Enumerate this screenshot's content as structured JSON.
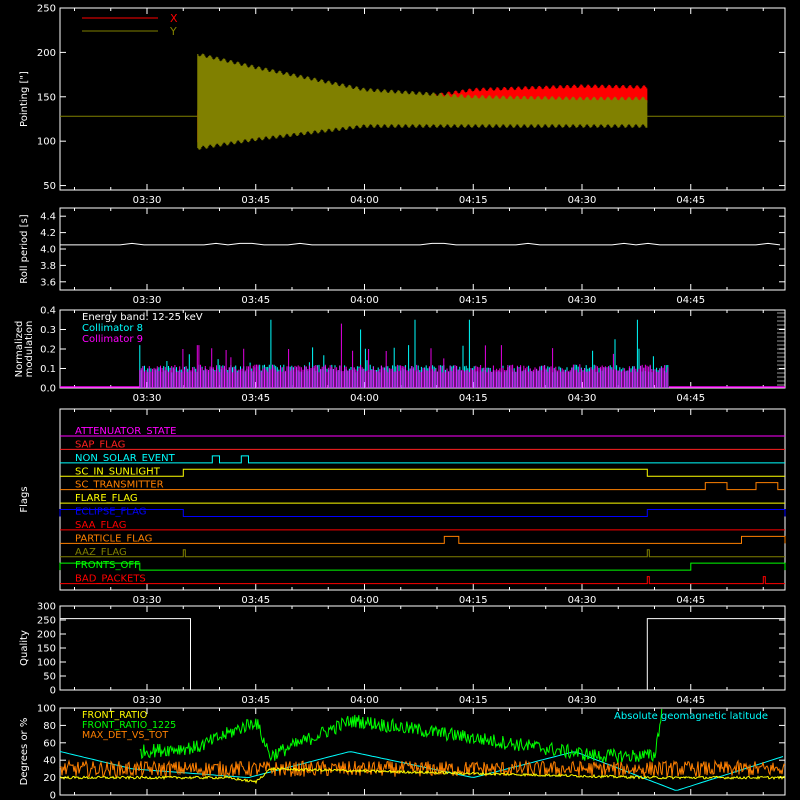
{
  "chart_data": [
    {
      "type": "line",
      "ylabel": "Pointing [\"]",
      "ylim": [
        45,
        250
      ],
      "yticks": [
        50,
        100,
        150,
        200,
        250
      ],
      "x_tick_labels": [
        "03:30",
        "03:45",
        "04:00",
        "04:15",
        "04:30",
        "04:45"
      ],
      "xlim_minutes_note": "x axis spans roughly 03:18 to 04:58",
      "series": [
        {
          "name": "X",
          "color": "#ff0000",
          "envelope": {
            "x": [
              "03:37",
              "03:45",
              "04:00",
              "04:15",
              "04:30",
              "04:39"
            ],
            "high": [
              135,
              135,
              142,
              160,
              164,
              163
            ],
            "low": [
              95,
              102,
              122,
              140,
              143,
              143
            ]
          }
        },
        {
          "name": "Y",
          "color": "#808000",
          "envelope": {
            "x": [
              "03:37",
              "03:45",
              "04:00",
              "04:15",
              "04:30",
              "04:39"
            ],
            "high": [
              200,
              185,
              160,
              152,
              150,
              150
            ],
            "low": [
              90,
              100,
              115,
              115,
              115,
              115
            ]
          }
        }
      ],
      "reference_line": 128,
      "legend_position": "top-left"
    },
    {
      "type": "line",
      "ylabel": "Roll period [s]",
      "ylim": [
        3.5,
        4.5
      ],
      "yticks": [
        3.6,
        3.8,
        4.0,
        4.2,
        4.4
      ],
      "x_tick_labels": [
        "03:30",
        "03:45",
        "04:00",
        "04:15",
        "04:30",
        "04:45"
      ],
      "series": [
        {
          "name": "",
          "color": "#ffffff",
          "x": [
            "03:18",
            "04:58"
          ],
          "values": [
            4.05,
            4.05
          ]
        }
      ]
    },
    {
      "type": "bar",
      "ylabel": "Normalized modulation",
      "ylim": [
        0.0,
        0.4
      ],
      "yticks": [
        0.0,
        0.1,
        0.2,
        0.3,
        0.4
      ],
      "x_tick_labels": [
        "03:30",
        "03:45",
        "04:00",
        "04:15",
        "04:30",
        "04:45"
      ],
      "annotation": "Energy band: 12-25 keV",
      "series": [
        {
          "name": "Collimator 8",
          "color": "#00ffff",
          "range": [
            "03:29",
            "04:42"
          ],
          "baseline": 0.1,
          "peaks": [
            0.35,
            0.22,
            0.3,
            0.25,
            0.28,
            0.35
          ]
        },
        {
          "name": "Collimator 9",
          "color": "#ff00ff",
          "range": [
            "03:29",
            "04:42"
          ],
          "baseline": 0.1,
          "peaks": [
            0.33,
            0.2,
            0.38,
            0.22,
            0.2,
            0.2
          ]
        }
      ],
      "legend_position": "top-left"
    },
    {
      "type": "line",
      "ylabel": "Flags",
      "x_tick_labels": [
        "03:30",
        "03:45",
        "04:00",
        "04:15",
        "04:30",
        "04:45"
      ],
      "flags": [
        {
          "name": "ATTENUATOR_STATE",
          "color": "#ff00ff",
          "on": []
        },
        {
          "name": "SAP_FLAG",
          "color": "#ff2020",
          "on": []
        },
        {
          "name": "NON_SOLAR_EVENT",
          "color": "#00ffff",
          "on": [
            [
              "03:39",
              "03:40"
            ],
            [
              "03:43",
              "03:44"
            ]
          ]
        },
        {
          "name": "SC_IN_SUNLIGHT",
          "color": "#ffff00",
          "on": [
            [
              "03:35",
              "04:39"
            ]
          ]
        },
        {
          "name": "SC_TRANSMITTER",
          "color": "#ff8000",
          "on": [
            [
              "04:47",
              "04:50"
            ],
            [
              "04:54",
              "04:57"
            ]
          ]
        },
        {
          "name": "FLARE_FLAG",
          "color": "#ffff00",
          "on": []
        },
        {
          "name": "ECLIPSE_FLAG",
          "color": "#0000ff",
          "on": [
            [
              "03:18",
              "03:35"
            ],
            [
              "04:39",
              "04:58"
            ]
          ]
        },
        {
          "name": "SAA_FLAG",
          "color": "#ff0000",
          "on": []
        },
        {
          "name": "PARTICLE_FLAG",
          "color": "#ff8000",
          "on": [
            [
              "04:11",
              "04:13"
            ],
            [
              "04:52",
              "04:58"
            ]
          ]
        },
        {
          "name": "AAZ_FLAG",
          "color": "#808000",
          "on": [
            [
              "03:35",
              "03:35"
            ],
            [
              "04:39",
              "04:39"
            ]
          ]
        },
        {
          "name": "FRONTS_OFF",
          "color": "#00ff00",
          "on": [
            [
              "03:18",
              "03:29"
            ],
            [
              "04:45",
              "04:58"
            ]
          ]
        },
        {
          "name": "BAD_PACKETS",
          "color": "#ff0000",
          "on": [
            [
              "04:39",
              "04:39"
            ],
            [
              "04:55",
              "04:55"
            ]
          ]
        }
      ]
    },
    {
      "type": "line",
      "ylabel": "Quality",
      "ylim": [
        0,
        300
      ],
      "yticks": [
        0,
        50,
        100,
        150,
        200,
        250,
        300
      ],
      "x_tick_labels": [
        "03:30",
        "03:45",
        "04:00",
        "04:15",
        "04:30",
        "04:45"
      ],
      "series": [
        {
          "name": "",
          "color": "#ffffff",
          "x": [
            "03:18",
            "03:36",
            "03:36",
            "04:39",
            "04:39",
            "04:58"
          ],
          "values": [
            255,
            255,
            0,
            0,
            255,
            255
          ]
        }
      ]
    },
    {
      "type": "line",
      "ylabel": "Degrees or %",
      "ylim": [
        0,
        100
      ],
      "yticks": [
        0,
        20,
        40,
        60,
        80,
        100
      ],
      "series": [
        {
          "name": "FRONT_RATIO",
          "color": "#ffff00",
          "x": [
            "03:18",
            "03:34",
            "03:41",
            "03:45",
            "03:47",
            "04:40",
            "04:58"
          ],
          "values": [
            20,
            20,
            20,
            15,
            30,
            20,
            20
          ]
        },
        {
          "name": "FRONT_RATIO_1225",
          "color": "#00ff00",
          "x": [
            "03:29",
            "03:37",
            "03:45",
            "03:47",
            "03:58",
            "03:59",
            "04:32",
            "04:40",
            "04:41"
          ],
          "values": [
            50,
            55,
            85,
            45,
            85,
            85,
            45,
            45,
            95
          ]
        },
        {
          "name": "MAX_DET_VS_TOT",
          "color": "#ff8000",
          "x": [
            "03:18",
            "04:58"
          ],
          "values": [
            30,
            30
          ]
        },
        {
          "name": "Absolute geomagnetic latitude",
          "color": "#00ffff",
          "x": [
            "03:18",
            "03:28",
            "03:44",
            "03:58",
            "04:15",
            "04:29",
            "04:43",
            "04:58"
          ],
          "values": [
            50,
            30,
            20,
            50,
            20,
            50,
            5,
            45
          ]
        }
      ],
      "legend_position": "top-left and top-right"
    }
  ]
}
